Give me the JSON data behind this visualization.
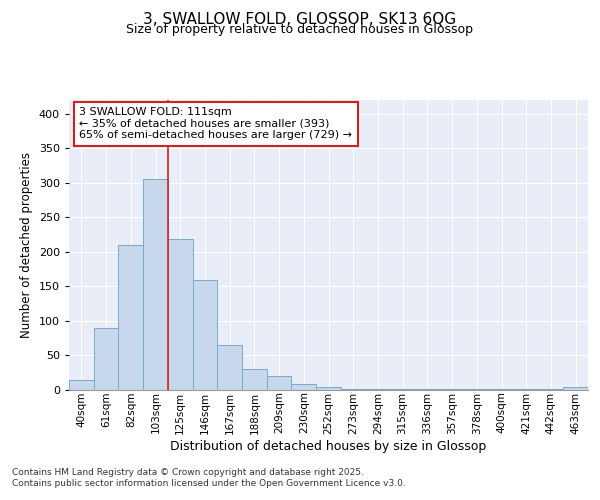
{
  "title1": "3, SWALLOW FOLD, GLOSSOP, SK13 6QG",
  "title2": "Size of property relative to detached houses in Glossop",
  "xlabel": "Distribution of detached houses by size in Glossop",
  "ylabel": "Number of detached properties",
  "categories": [
    "40sqm",
    "61sqm",
    "82sqm",
    "103sqm",
    "125sqm",
    "146sqm",
    "167sqm",
    "188sqm",
    "209sqm",
    "230sqm",
    "252sqm",
    "273sqm",
    "294sqm",
    "315sqm",
    "336sqm",
    "357sqm",
    "378sqm",
    "400sqm",
    "421sqm",
    "442sqm",
    "463sqm"
  ],
  "values": [
    15,
    90,
    210,
    305,
    218,
    160,
    65,
    30,
    20,
    8,
    4,
    2,
    2,
    1,
    2,
    1,
    2,
    1,
    1,
    1,
    4
  ],
  "bar_color": "#c8d8ec",
  "bar_edge_color": "#7aaac8",
  "background_color": "#e8edf8",
  "grid_color": "#ffffff",
  "vline_color": "#cc2222",
  "annotation_text": "3 SWALLOW FOLD: 111sqm\n← 35% of detached houses are smaller (393)\n65% of semi-detached houses are larger (729) →",
  "annotation_box_color": "#ffffff",
  "annotation_box_edge": "#cc2222",
  "footer_text": "Contains HM Land Registry data © Crown copyright and database right 2025.\nContains public sector information licensed under the Open Government Licence v3.0.",
  "ylim": [
    0,
    420
  ],
  "yticks": [
    0,
    50,
    100,
    150,
    200,
    250,
    300,
    350,
    400
  ],
  "title1_fontsize": 11,
  "title2_fontsize": 9
}
